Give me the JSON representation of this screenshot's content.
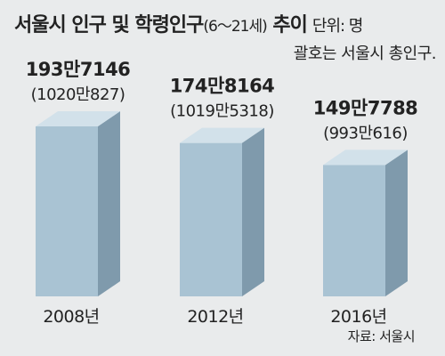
{
  "header": {
    "title_main": "서울시 인구 및 학령인구",
    "title_paren": "(6～21세)",
    "title_end": "추이",
    "unit_line1": "단위: 명",
    "unit_line2": "괄호는 서울시 총인구."
  },
  "source": "자료: 서울시",
  "chart_data": {
    "type": "bar",
    "title": "서울시 인구 및 학령인구(6～21세) 추이",
    "unit": "명",
    "categories": [
      "2008년",
      "2012년",
      "2016년"
    ],
    "series": [
      {
        "name": "학령인구(6～21세)",
        "values": [
          1937146,
          1748164,
          1497788
        ]
      },
      {
        "name": "서울시 총인구",
        "values": [
          10200827,
          10195318,
          9930616
        ]
      }
    ],
    "value_labels": [
      "193만7146",
      "174만8164",
      "149만7788"
    ],
    "total_labels": [
      "(1020만827)",
      "(1019만5318)",
      "(993만616)"
    ],
    "ylim": [
      0,
      1937146
    ],
    "grid": false,
    "legend": "none",
    "colors": {
      "front": "#a9c3d3",
      "side": "#7f9aac",
      "top": "#d2e1ea",
      "background": "#e9ebec"
    }
  }
}
